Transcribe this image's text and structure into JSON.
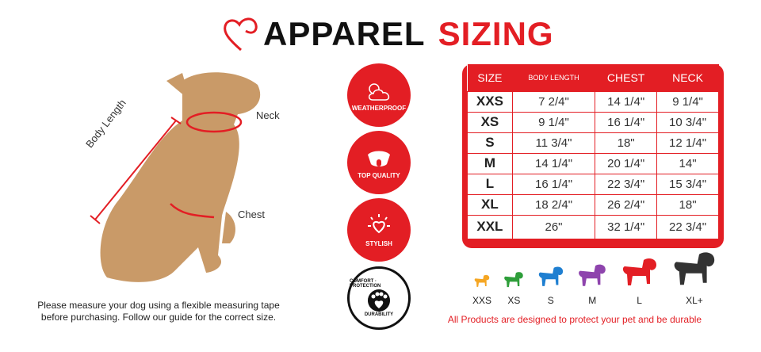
{
  "title": {
    "part1": "APPAREL",
    "part2": "SIZING",
    "accent": "#e31e24"
  },
  "diagram": {
    "labels": {
      "neck": "Neck",
      "body_length": "Body Length",
      "chest": "Chest"
    }
  },
  "caption": "Please measure your dog using a flexible measuring tape before purchasing. Follow our guide for the correct size.",
  "badges": [
    {
      "label": "WEATHERPROOF",
      "icon": "sun-cloud-icon"
    },
    {
      "label": "TOP QUALITY",
      "icon": "dog-face-icon"
    },
    {
      "label": "STYLISH",
      "icon": "heart-sun-icon"
    },
    {
      "top": "COMFORT · PROTECTION",
      "bottom": "DURABILITY",
      "icon": "paw-heart-icon"
    }
  ],
  "table": {
    "headers": [
      "SIZE",
      "BODY LENGTH",
      "CHEST",
      "NECK"
    ],
    "rows": [
      [
        "XXS",
        "7 2/4\"",
        "14 1/4\"",
        "9 1/4\""
      ],
      [
        "XS",
        "9 1/4\"",
        "16 1/4\"",
        "10 3/4\""
      ],
      [
        "S",
        "11 3/4\"",
        "18\"",
        "12 1/4\""
      ],
      [
        "M",
        "14 1/4\"",
        "20 1/4\"",
        "14\""
      ],
      [
        "L",
        "16 1/4\"",
        "22 3/4\"",
        "15 3/4\""
      ],
      [
        "XL",
        "18 2/4\"",
        "26 2/4\"",
        "18\""
      ],
      [
        "XXL",
        "26\"",
        "32 1/4\"",
        "22 3/4\""
      ]
    ]
  },
  "dogs": [
    {
      "label": "XXS",
      "color": "#f5a623"
    },
    {
      "label": "XS",
      "color": "#2e9e3a"
    },
    {
      "label": "S",
      "color": "#1f7fd1"
    },
    {
      "label": "M",
      "color": "#8e44ad"
    },
    {
      "label": "L",
      "color": "#e31e24"
    },
    {
      "label": "XL+",
      "color": "#333333"
    }
  ],
  "footer": "All Products are designed to protect your pet and be durable"
}
